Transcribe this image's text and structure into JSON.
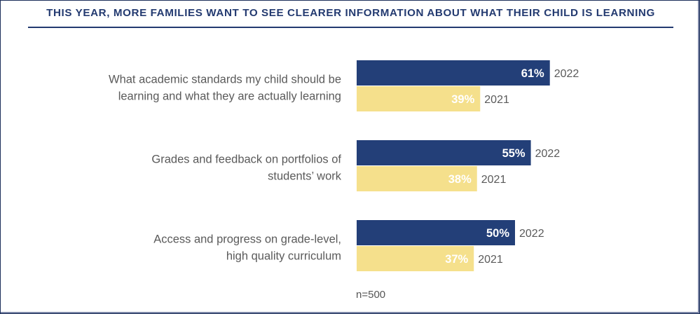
{
  "title": "THIS YEAR, MORE FAMILIES WANT TO SEE CLEARER INFORMATION ABOUT WHAT THEIR CHILD IS LEARNING",
  "footnote": "n=500",
  "colors": {
    "series_2022": "#233f78",
    "series_2021": "#f5e08c",
    "value_text": "#ffffff",
    "label_text": "#5a5a5a",
    "title": "#233a70"
  },
  "chart_data": {
    "type": "bar",
    "orientation": "horizontal",
    "categories": [
      [
        "What academic standards my child should be",
        "learning and what they are actually learning"
      ],
      [
        "Grades and feedback on portfolios of",
        "students’ work"
      ],
      [
        "Access and progress on grade-level,",
        "high quality curriculum"
      ]
    ],
    "series": [
      {
        "name": "2022",
        "values": [
          61,
          55,
          50
        ],
        "labels": [
          "61%",
          "55%",
          "50%"
        ]
      },
      {
        "name": "2021",
        "values": [
          39,
          38,
          37
        ],
        "labels": [
          "39%",
          "38%",
          "37%"
        ]
      }
    ],
    "unit": "%",
    "xlim": [
      0,
      100
    ],
    "grid": false,
    "legend": "none"
  }
}
